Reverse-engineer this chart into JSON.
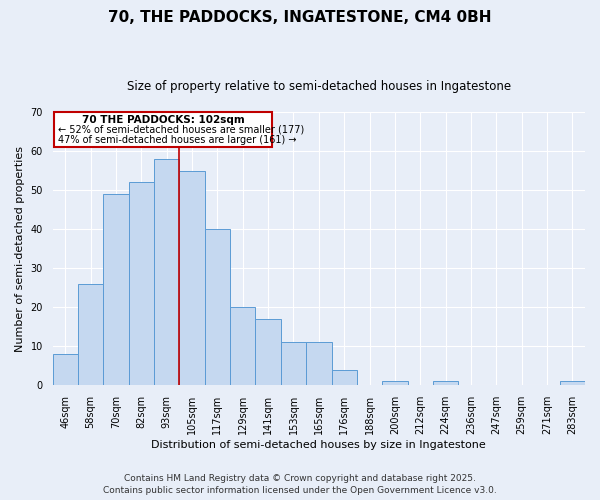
{
  "title": "70, THE PADDOCKS, INGATESTONE, CM4 0BH",
  "subtitle": "Size of property relative to semi-detached houses in Ingatestone",
  "xlabel": "Distribution of semi-detached houses by size in Ingatestone",
  "ylabel": "Number of semi-detached properties",
  "categories": [
    "46sqm",
    "58sqm",
    "70sqm",
    "82sqm",
    "93sqm",
    "105sqm",
    "117sqm",
    "129sqm",
    "141sqm",
    "153sqm",
    "165sqm",
    "176sqm",
    "188sqm",
    "200sqm",
    "212sqm",
    "224sqm",
    "236sqm",
    "247sqm",
    "259sqm",
    "271sqm",
    "283sqm"
  ],
  "values": [
    8,
    26,
    49,
    52,
    58,
    55,
    40,
    20,
    17,
    11,
    11,
    4,
    0,
    1,
    0,
    1,
    0,
    0,
    0,
    0,
    1
  ],
  "bar_color": "#c5d8f0",
  "bar_edge_color": "#5b9bd5",
  "vline_color": "#c00000",
  "vline_pos": 4.5,
  "ylim": [
    0,
    70
  ],
  "yticks": [
    0,
    10,
    20,
    30,
    40,
    50,
    60,
    70
  ],
  "annotation_title": "70 THE PADDOCKS: 102sqm",
  "annotation_line1": "← 52% of semi-detached houses are smaller (177)",
  "annotation_line2": "47% of semi-detached houses are larger (161) →",
  "annotation_box_color": "#c00000",
  "footer_line1": "Contains HM Land Registry data © Crown copyright and database right 2025.",
  "footer_line2": "Contains public sector information licensed under the Open Government Licence v3.0.",
  "bg_color": "#e8eef8",
  "grid_color": "#ffffff",
  "title_fontsize": 11,
  "subtitle_fontsize": 8.5,
  "axis_label_fontsize": 8,
  "tick_fontsize": 7,
  "footer_fontsize": 6.5,
  "ann_title_fontsize": 7.5,
  "ann_text_fontsize": 7
}
